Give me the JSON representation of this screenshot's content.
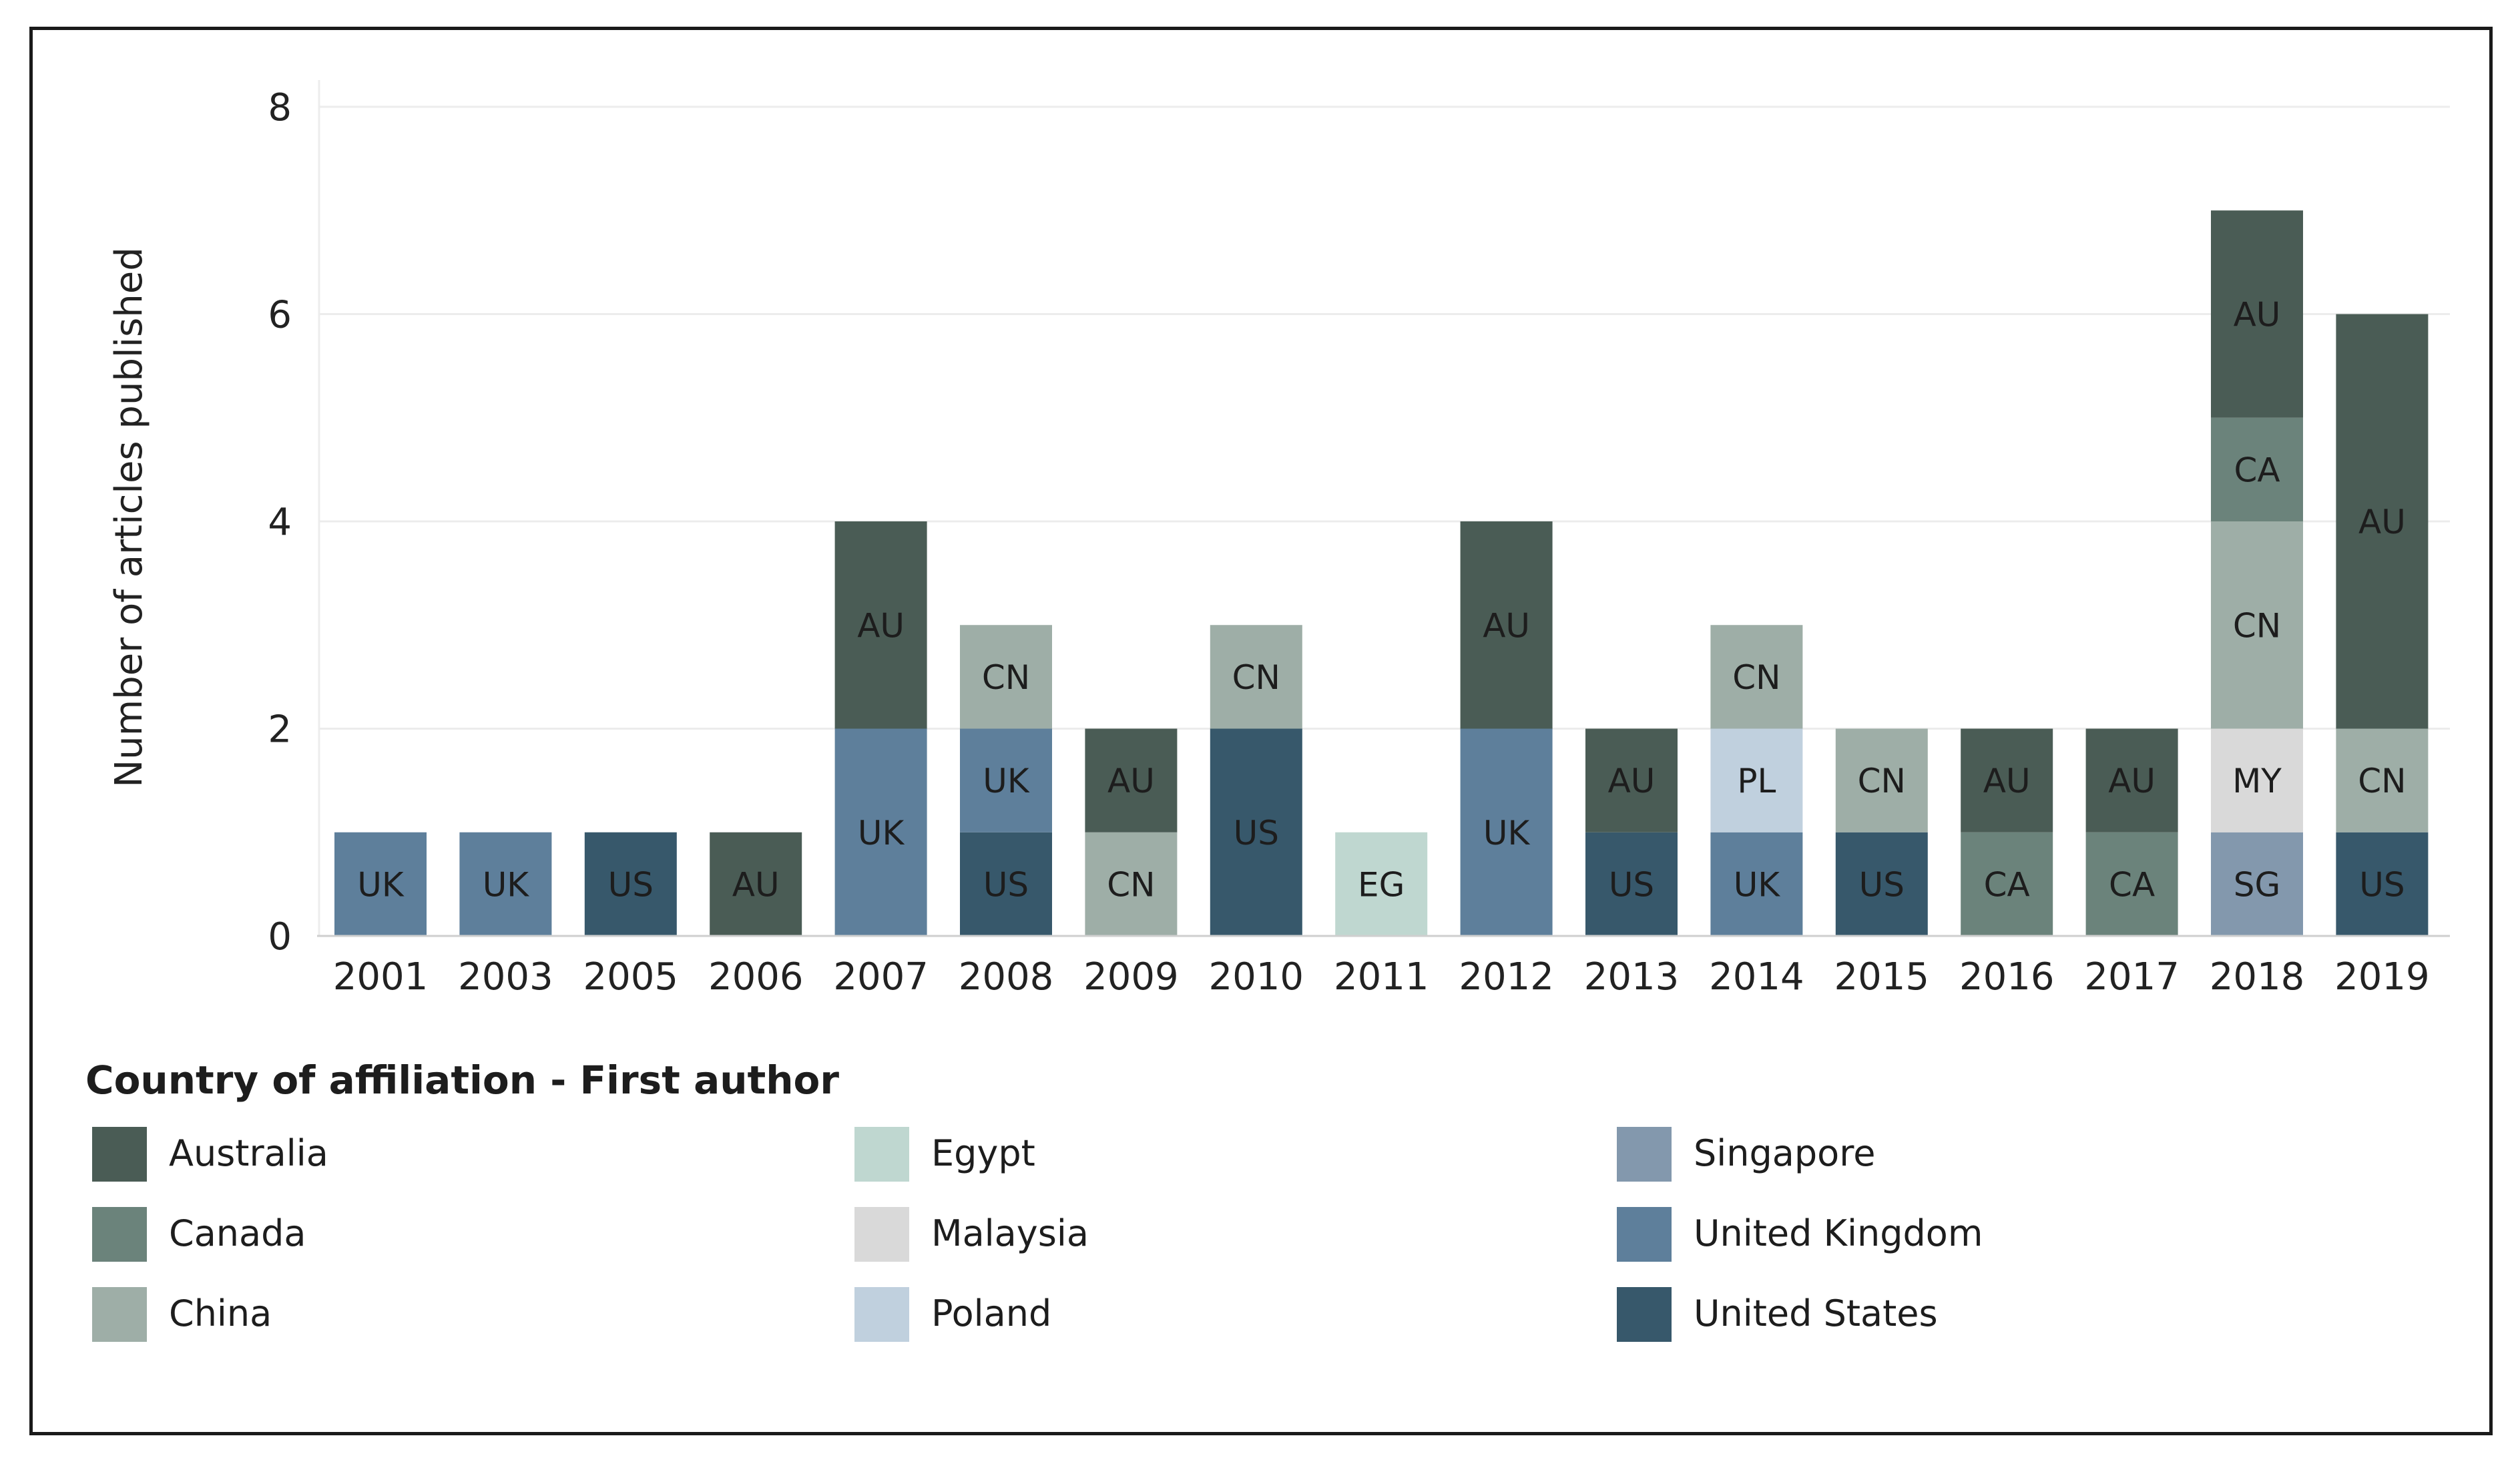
{
  "chart_data": {
    "type": "bar",
    "stacked": true,
    "ylabel": "Number of articles published",
    "xlabel": "",
    "ylim": [
      0,
      8
    ],
    "yticks": [
      0,
      2,
      4,
      6,
      8
    ],
    "grid": true,
    "legend_title": "Country of affiliation - First author",
    "legend_position": "bottom",
    "countries": [
      {
        "code": "AU",
        "name": "Australia",
        "color": "#4a5c55"
      },
      {
        "code": "CA",
        "name": "Canada",
        "color": "#6b837b"
      },
      {
        "code": "CN",
        "name": "China",
        "color": "#9eaea7"
      },
      {
        "code": "EG",
        "name": "Egypt",
        "color": "#bfd7d0"
      },
      {
        "code": "MY",
        "name": "Malaysia",
        "color": "#d9d9d9"
      },
      {
        "code": "PL",
        "name": "Poland",
        "color": "#c0d0de"
      },
      {
        "code": "SG",
        "name": "Singapore",
        "color": "#8398ad"
      },
      {
        "code": "UK",
        "name": "United Kingdom",
        "color": "#5e7f9b"
      },
      {
        "code": "US",
        "name": "United States",
        "color": "#37586b"
      }
    ],
    "bars": [
      {
        "year": "2001",
        "segments": [
          {
            "code": "UK",
            "value": 1
          }
        ]
      },
      {
        "year": "2003",
        "segments": [
          {
            "code": "UK",
            "value": 1
          }
        ]
      },
      {
        "year": "2005",
        "segments": [
          {
            "code": "US",
            "value": 1
          }
        ]
      },
      {
        "year": "2006",
        "segments": [
          {
            "code": "AU",
            "value": 1
          }
        ]
      },
      {
        "year": "2007",
        "segments": [
          {
            "code": "UK",
            "value": 2
          },
          {
            "code": "AU",
            "value": 2
          }
        ]
      },
      {
        "year": "2008",
        "segments": [
          {
            "code": "US",
            "value": 1
          },
          {
            "code": "UK",
            "value": 1
          },
          {
            "code": "CN",
            "value": 1
          }
        ]
      },
      {
        "year": "2009",
        "segments": [
          {
            "code": "CN",
            "value": 1
          },
          {
            "code": "AU",
            "value": 1
          }
        ]
      },
      {
        "year": "2010",
        "segments": [
          {
            "code": "US",
            "value": 2
          },
          {
            "code": "CN",
            "value": 1
          }
        ]
      },
      {
        "year": "2011",
        "segments": [
          {
            "code": "EG",
            "value": 1
          }
        ]
      },
      {
        "year": "2012",
        "segments": [
          {
            "code": "UK",
            "value": 2
          },
          {
            "code": "AU",
            "value": 2
          }
        ]
      },
      {
        "year": "2013",
        "segments": [
          {
            "code": "US",
            "value": 1
          },
          {
            "code": "AU",
            "value": 1
          }
        ]
      },
      {
        "year": "2014",
        "segments": [
          {
            "code": "UK",
            "value": 1
          },
          {
            "code": "PL",
            "value": 1
          },
          {
            "code": "CN",
            "value": 1
          }
        ]
      },
      {
        "year": "2015",
        "segments": [
          {
            "code": "US",
            "value": 1
          },
          {
            "code": "CN",
            "value": 1
          }
        ]
      },
      {
        "year": "2016",
        "segments": [
          {
            "code": "CA",
            "value": 1
          },
          {
            "code": "AU",
            "value": 1
          }
        ]
      },
      {
        "year": "2017",
        "segments": [
          {
            "code": "CA",
            "value": 1
          },
          {
            "code": "AU",
            "value": 1
          }
        ]
      },
      {
        "year": "2018",
        "segments": [
          {
            "code": "SG",
            "value": 1
          },
          {
            "code": "MY",
            "value": 1
          },
          {
            "code": "CN",
            "value": 2
          },
          {
            "code": "CA",
            "value": 1
          },
          {
            "code": "AU",
            "value": 2
          }
        ]
      },
      {
        "year": "2019",
        "segments": [
          {
            "code": "US",
            "value": 1
          },
          {
            "code": "CN",
            "value": 1
          },
          {
            "code": "AU",
            "value": 4
          }
        ]
      }
    ]
  }
}
